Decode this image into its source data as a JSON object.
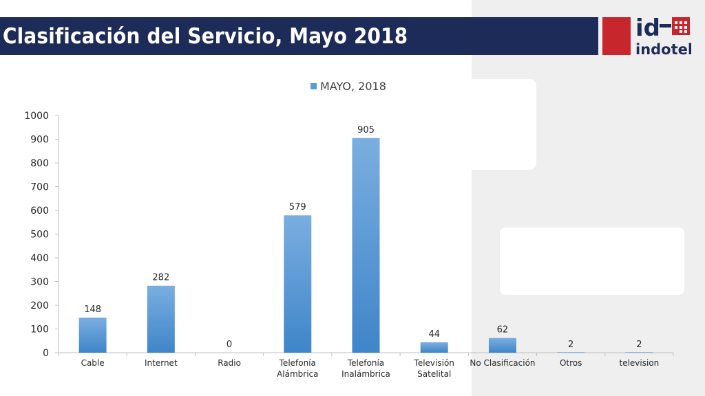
{
  "header": {
    "title": "Clasificación del Servicio, Mayo 2018",
    "logo_text_top": "id",
    "logo_text_bottom": "indotel"
  },
  "colors": {
    "title_bar": "#1c2b57",
    "logo_red": "#c7262c",
    "bar": "#5b9bd5",
    "panel": "#efefef"
  },
  "chart_data": {
    "type": "bar",
    "categories": [
      "Cable",
      "Internet",
      "Radio",
      "Telefonía Alámbrica",
      "Telefonía Inalámbrica",
      "Televisión Satelital",
      "No Clasificación",
      "Otros",
      "television"
    ],
    "category_lines": [
      [
        "Cable"
      ],
      [
        "Internet"
      ],
      [
        "Radio"
      ],
      [
        "Telefonía",
        "Alámbrica"
      ],
      [
        "Telefonía",
        "Inalámbrica"
      ],
      [
        "Televisión",
        "Satelital"
      ],
      [
        "No Clasificación"
      ],
      [
        "Otros"
      ],
      [
        "television"
      ]
    ],
    "series": [
      {
        "name": "MAYO, 2018",
        "values": [
          148,
          282,
          0,
          579,
          905,
          44,
          62,
          2,
          2
        ]
      }
    ],
    "data_labels": [
      "148",
      "282",
      "0",
      "579",
      "905",
      "44",
      "62",
      "2",
      "2"
    ],
    "yticks": [
      0,
      100,
      200,
      300,
      400,
      500,
      600,
      700,
      800,
      900,
      1000
    ],
    "ylim": [
      0,
      1000
    ],
    "legend": "top-center",
    "grid": false
  }
}
